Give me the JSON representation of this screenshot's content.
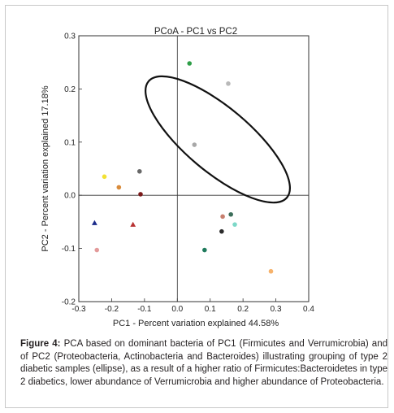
{
  "chart_data": {
    "type": "scatter",
    "title": "PCoA - PC1 vs PC2",
    "xlabel": "PC1 - Percent variation explained 44.58%",
    "ylabel": "PC2 - Percent variation explained 17.18%",
    "xlim": [
      -0.3,
      0.4
    ],
    "ylim": [
      -0.2,
      0.3
    ],
    "xticks": [
      "-0.3",
      "-0.2",
      "-0.1",
      "0.0",
      "0.1",
      "0.2",
      "0.3",
      "0.4"
    ],
    "yticks": [
      "-0.2",
      "-0.1",
      "0.0",
      "0.1",
      "0.2",
      "0.3"
    ],
    "zero_lines": true,
    "grid": false,
    "points": [
      {
        "x": 0.037,
        "y": 0.248,
        "color": "#2e9e48",
        "marker": "circle"
      },
      {
        "x": 0.155,
        "y": 0.21,
        "color": "#b9b9b9",
        "marker": "circle"
      },
      {
        "x": 0.052,
        "y": 0.095,
        "color": "#a8a8a8",
        "marker": "circle"
      },
      {
        "x": -0.115,
        "y": 0.045,
        "color": "#686868",
        "marker": "circle"
      },
      {
        "x": -0.222,
        "y": 0.035,
        "color": "#f2e133",
        "marker": "circle"
      },
      {
        "x": -0.178,
        "y": 0.015,
        "color": "#d98b3a",
        "marker": "circle"
      },
      {
        "x": -0.112,
        "y": 0.002,
        "color": "#7a1a1a",
        "marker": "circle"
      },
      {
        "x": -0.252,
        "y": -0.052,
        "color": "#1a2a8a",
        "marker": "triangle"
      },
      {
        "x": -0.135,
        "y": -0.055,
        "color": "#b83232",
        "marker": "triangle"
      },
      {
        "x": -0.245,
        "y": -0.103,
        "color": "#e39a9a",
        "marker": "circle"
      },
      {
        "x": 0.138,
        "y": -0.04,
        "color": "#c77f6e",
        "marker": "circle"
      },
      {
        "x": 0.163,
        "y": -0.036,
        "color": "#3c6e5a",
        "marker": "circle"
      },
      {
        "x": 0.175,
        "y": -0.055,
        "color": "#7dd8c8",
        "marker": "circle"
      },
      {
        "x": 0.135,
        "y": -0.068,
        "color": "#2b2b2b",
        "marker": "circle"
      },
      {
        "x": 0.083,
        "y": -0.103,
        "color": "#1f7a5c",
        "marker": "circle"
      },
      {
        "x": 0.285,
        "y": -0.143,
        "color": "#f6b26b",
        "marker": "circle"
      }
    ],
    "ellipse": {
      "cx": 0.123,
      "cy": 0.105,
      "rx": 0.275,
      "ry": 0.098,
      "angle_deg": 40
    }
  },
  "caption": {
    "label": "Figure 4:",
    "text": " PCA based on dominant bacteria of PC1 (Firmicutes and Verrumicrobia) and of PC2 (Proteobacteria, Actinobacteria and Bacteroides) illustrating grouping of type 2 diabetic samples (ellipse), as a result of a higher ratio of Firmicutes:Bacteroidetes in type 2 diabetics, lower abundance of Verrumicrobia and higher abundance of Proteobacteria."
  }
}
